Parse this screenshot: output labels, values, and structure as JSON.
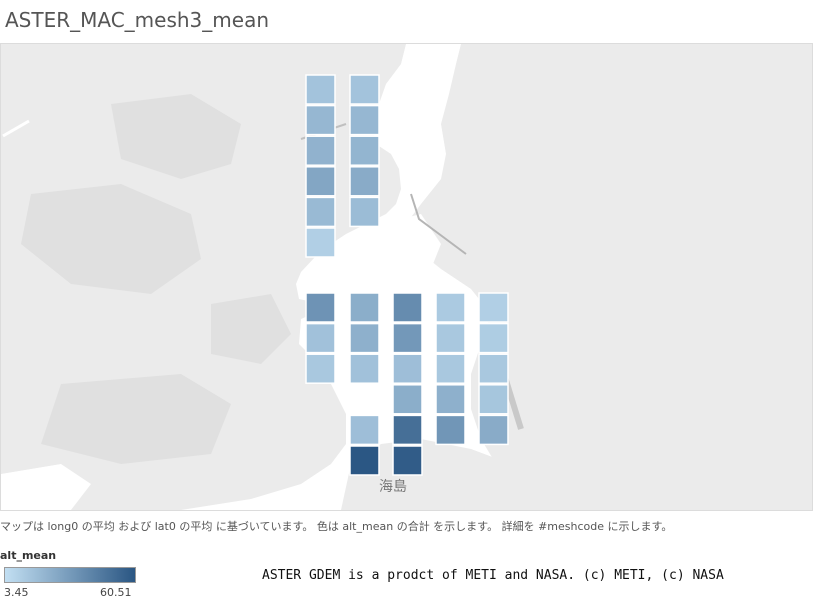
{
  "title": "ASTER_MAC_mesh3_mean",
  "map": {
    "place_label": "海島",
    "colors": {
      "low": "#c2dff2",
      "high": "#2a5683",
      "land": "#eaeaea",
      "water": "#ffffff",
      "road": "#bbbbbb"
    },
    "cells": [
      {
        "col": 0,
        "row": 0,
        "value": 15
      },
      {
        "col": 0,
        "row": 1,
        "value": 20
      },
      {
        "col": 0,
        "row": 2,
        "value": 22
      },
      {
        "col": 0,
        "row": 3,
        "value": 27
      },
      {
        "col": 0,
        "row": 4,
        "value": 19
      },
      {
        "col": 0,
        "row": 5,
        "value": 10
      },
      {
        "col": 1,
        "row": 0,
        "value": 15
      },
      {
        "col": 1,
        "row": 1,
        "value": 20
      },
      {
        "col": 1,
        "row": 2,
        "value": 21
      },
      {
        "col": 1,
        "row": 3,
        "value": 25
      },
      {
        "col": 1,
        "row": 4,
        "value": 18
      },
      {
        "col": 2,
        "row": 0,
        "value": 35
      },
      {
        "col": 2,
        "row": 1,
        "value": 16
      },
      {
        "col": 2,
        "row": 2,
        "value": 13
      },
      {
        "col": 3,
        "row": 0,
        "value": 24
      },
      {
        "col": 3,
        "row": 1,
        "value": 23
      },
      {
        "col": 3,
        "row": 2,
        "value": 16
      },
      {
        "col": 3,
        "row": 4,
        "value": 17
      },
      {
        "col": 3,
        "row": 5,
        "value": 60
      },
      {
        "col": 4,
        "row": 0,
        "value": 38
      },
      {
        "col": 4,
        "row": 1,
        "value": 33
      },
      {
        "col": 4,
        "row": 2,
        "value": 17
      },
      {
        "col": 4,
        "row": 3,
        "value": 24
      },
      {
        "col": 4,
        "row": 4,
        "value": 50
      },
      {
        "col": 4,
        "row": 5,
        "value": 58
      },
      {
        "col": 5,
        "row": 0,
        "value": 12
      },
      {
        "col": 5,
        "row": 1,
        "value": 13
      },
      {
        "col": 5,
        "row": 2,
        "value": 13
      },
      {
        "col": 5,
        "row": 3,
        "value": 23
      },
      {
        "col": 5,
        "row": 4,
        "value": 34
      },
      {
        "col": 6,
        "row": 0,
        "value": 10
      },
      {
        "col": 6,
        "row": 1,
        "value": 11
      },
      {
        "col": 6,
        "row": 2,
        "value": 13
      },
      {
        "col": 6,
        "row": 3,
        "value": 14
      },
      {
        "col": 6,
        "row": 4,
        "value": 25
      }
    ]
  },
  "note": "マップは long0 の平均 および lat0 の平均 に基づいています。 色は alt_mean の合計 を示します。 詳細を #meshcode に示します。",
  "legend": {
    "title": "alt_mean",
    "min": "3.45",
    "max": "60.51",
    "min_value": 3.45,
    "max_value": 60.51
  },
  "credit": "ASTER GDEM is a prodct of METI and NASA. (c) METI, (c) NASA"
}
